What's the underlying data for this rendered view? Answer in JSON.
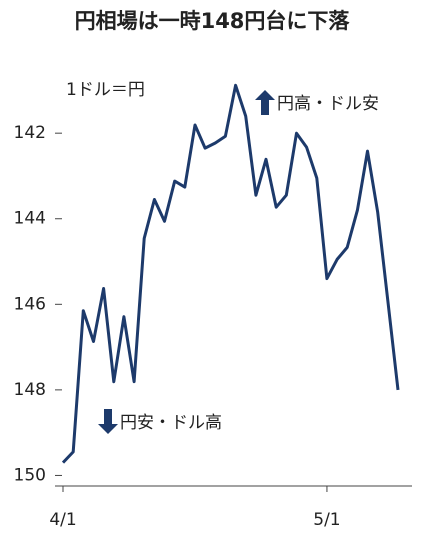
{
  "chart_data": {
    "type": "line",
    "title": "円相場は一時148円台に下落",
    "annotations": [
      "1ドル＝円",
      "円高・ドル安",
      "円安・ドル高"
    ],
    "categories": [
      "4/1",
      null,
      null,
      null,
      null,
      null,
      null,
      null,
      null,
      null,
      null,
      null,
      null,
      null,
      null,
      null,
      null,
      null,
      null,
      null,
      null,
      null,
      null,
      null,
      null,
      null,
      "5/1",
      null,
      null,
      null,
      null,
      null,
      null,
      null
    ],
    "series": [
      {
        "name": "円相場",
        "color": "#1d3a6b",
        "values": [
          149.7,
          149.45,
          146.15,
          146.87,
          145.63,
          147.81,
          146.29,
          147.81,
          144.46,
          143.55,
          144.06,
          143.12,
          143.26,
          141.81,
          142.35,
          142.23,
          142.07,
          140.88,
          141.6,
          143.45,
          142.61,
          143.73,
          143.45,
          142.0,
          142.33,
          143.05,
          145.4,
          144.95,
          144.67,
          143.8,
          142.42,
          143.85,
          145.91,
          148.0
        ]
      }
    ],
    "ylim": [
      150.2,
      140.5
    ],
    "yticks": [
      142,
      144,
      146,
      148,
      150
    ]
  }
}
